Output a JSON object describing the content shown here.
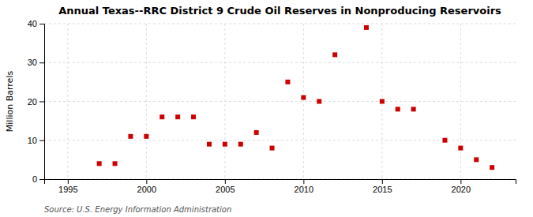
{
  "chart_data": {
    "type": "scatter",
    "title": "Annual Texas--RRC District 9 Crude Oil Reserves in Nonproducing Reservoirs",
    "ylabel": "Million Barrels",
    "annotation": "Source: U.S. Energy Information Administration",
    "x": [
      1997,
      1998,
      1999,
      2000,
      2001,
      2002,
      2003,
      2004,
      2005,
      2006,
      2007,
      2008,
      2009,
      2010,
      2011,
      2012,
      2014,
      2015,
      2016,
      2017,
      2019,
      2020,
      2021,
      2022
    ],
    "values": [
      4,
      4,
      11,
      11,
      16,
      16,
      16,
      9,
      9,
      9,
      12,
      8,
      25,
      21,
      20,
      32,
      39,
      20,
      18,
      18,
      10,
      8,
      5,
      3
    ],
    "color": "#cc0000",
    "marker": "square",
    "xlim": [
      1993.5,
      2023.5
    ],
    "xticks": [
      1995,
      2000,
      2005,
      2010,
      2015,
      2020
    ],
    "ylim": [
      0,
      40
    ],
    "yticks": [
      0,
      10,
      20,
      30,
      40
    ],
    "grid": true
  }
}
